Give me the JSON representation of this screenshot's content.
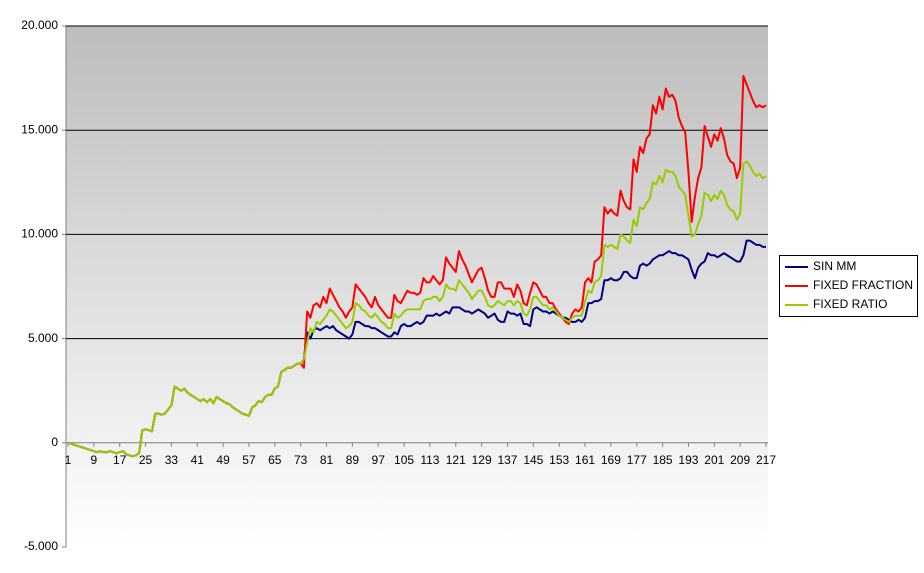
{
  "chart_data": {
    "type": "line",
    "categories": [
      1,
      null,
      null,
      null,
      null,
      null,
      null,
      null,
      9,
      null,
      null,
      null,
      null,
      null,
      null,
      null,
      17,
      null,
      null,
      null,
      null,
      null,
      null,
      null,
      25,
      null,
      null,
      null,
      null,
      null,
      null,
      null,
      33,
      null,
      null,
      null,
      null,
      null,
      null,
      null,
      41,
      null,
      null,
      null,
      null,
      null,
      null,
      null,
      49,
      null,
      null,
      null,
      null,
      null,
      null,
      null,
      57,
      null,
      null,
      null,
      null,
      null,
      null,
      null,
      65,
      null,
      null,
      null,
      null,
      null,
      null,
      null,
      73,
      null,
      null,
      null,
      null,
      null,
      null,
      null,
      81,
      null,
      null,
      null,
      null,
      null,
      null,
      null,
      89,
      null,
      null,
      null,
      null,
      null,
      null,
      null,
      97,
      null,
      null,
      null,
      null,
      null,
      null,
      null,
      105,
      null,
      null,
      null,
      null,
      null,
      null,
      null,
      113,
      null,
      null,
      null,
      null,
      null,
      null,
      null,
      121,
      null,
      null,
      null,
      null,
      null,
      null,
      null,
      129,
      null,
      null,
      null,
      null,
      null,
      null,
      null,
      137,
      null,
      null,
      null,
      null,
      null,
      null,
      null,
      145,
      null,
      null,
      null,
      null,
      null,
      null,
      null,
      153,
      null,
      null,
      null,
      null,
      null,
      null,
      null,
      161,
      null,
      null,
      null,
      null,
      null,
      null,
      null,
      169,
      null,
      null,
      null,
      null,
      null,
      null,
      null,
      177,
      null,
      null,
      null,
      null,
      null,
      null,
      null,
      185,
      null,
      null,
      null,
      null,
      null,
      null,
      null,
      193,
      null,
      null,
      null,
      null,
      null,
      null,
      null,
      201,
      null,
      null,
      null,
      null,
      null,
      null,
      null,
      209,
      null,
      null,
      null,
      null,
      null,
      null,
      null,
      217
    ],
    "series": [
      {
        "name": "SIN MM",
        "color": "#000080",
        "values": [
          0,
          -50,
          -100,
          -150,
          -200,
          -250,
          -300,
          -350,
          -400,
          -450,
          -400,
          -450,
          -450,
          -400,
          -450,
          -500,
          -450,
          -400,
          -550,
          -600,
          -650,
          -600,
          -500,
          600,
          650,
          600,
          550,
          1400,
          1400,
          1350,
          1400,
          1600,
          1800,
          2700,
          2600,
          2500,
          2600,
          2400,
          2300,
          2200,
          2100,
          2000,
          2100,
          1950,
          2100,
          1900,
          2200,
          2100,
          2000,
          1900,
          1850,
          1700,
          1600,
          1500,
          1400,
          1350,
          1300,
          1700,
          1800,
          2000,
          1950,
          2200,
          2300,
          2300,
          2600,
          2700,
          3400,
          3500,
          3600,
          3600,
          3700,
          3800,
          3800,
          4000,
          5300,
          5000,
          5400,
          5500,
          5400,
          5500,
          5600,
          5500,
          5600,
          5400,
          5300,
          5200,
          5100,
          5000,
          5200,
          5800,
          5800,
          5700,
          5600,
          5600,
          5500,
          5500,
          5400,
          5300,
          5200,
          5100,
          5100,
          5300,
          5200,
          5600,
          5700,
          5600,
          5600,
          5700,
          5800,
          5700,
          5800,
          6100,
          6100,
          6100,
          6200,
          6100,
          6200,
          6300,
          6200,
          6500,
          6500,
          6500,
          6400,
          6300,
          6300,
          6200,
          6300,
          6400,
          6300,
          6200,
          6000,
          6100,
          6200,
          5900,
          5800,
          5800,
          6300,
          6200,
          6200,
          6100,
          6200,
          5700,
          5700,
          5600,
          6400,
          6500,
          6400,
          6300,
          6300,
          6200,
          6300,
          6200,
          6100,
          6000,
          6000,
          5900,
          5800,
          5800,
          5900,
          5800,
          6000,
          6700,
          6700,
          6800,
          6800,
          6900,
          7800,
          7800,
          7900,
          7800,
          7800,
          7900,
          8200,
          8200,
          8000,
          7900,
          7900,
          8500,
          8600,
          8500,
          8600,
          8800,
          8900,
          9000,
          9000,
          9100,
          9200,
          9100,
          9100,
          9000,
          9000,
          8900,
          8800,
          8300,
          7900,
          8400,
          8600,
          8700,
          9100,
          9000,
          9000,
          8900,
          9000,
          9100,
          9000,
          8900,
          8800,
          8700,
          8700,
          9000,
          9700,
          9700,
          9600,
          9500,
          9500,
          9400,
          9400
        ]
      },
      {
        "name": "FIXED FRACTION",
        "color": "#ff0000",
        "values": [
          0,
          -50,
          -100,
          -150,
          -200,
          -250,
          -300,
          -350,
          -400,
          -450,
          -400,
          -450,
          -450,
          -400,
          -450,
          -500,
          -450,
          -400,
          -550,
          -600,
          -650,
          -600,
          -500,
          600,
          650,
          600,
          550,
          1400,
          1400,
          1350,
          1400,
          1600,
          1800,
          2700,
          2600,
          2500,
          2600,
          2400,
          2300,
          2200,
          2100,
          2000,
          2100,
          1950,
          2100,
          1900,
          2200,
          2100,
          2000,
          1900,
          1850,
          1700,
          1600,
          1500,
          1400,
          1350,
          1300,
          1700,
          1800,
          2000,
          1950,
          2200,
          2300,
          2300,
          2600,
          2700,
          3400,
          3500,
          3600,
          3600,
          3700,
          3800,
          3800,
          3600,
          6300,
          6000,
          6600,
          6700,
          6500,
          7000,
          6700,
          7400,
          7100,
          6800,
          6500,
          6300,
          6000,
          6300,
          6500,
          7600,
          7400,
          7200,
          7000,
          6700,
          6500,
          7000,
          6600,
          6400,
          6200,
          6000,
          6000,
          7100,
          6800,
          6700,
          7000,
          7300,
          7200,
          7200,
          7100,
          7200,
          7900,
          7700,
          7700,
          8000,
          7800,
          7600,
          7800,
          8900,
          8600,
          8400,
          8200,
          9200,
          8800,
          8500,
          8100,
          7700,
          8000,
          8300,
          8400,
          7900,
          7300,
          7000,
          7000,
          7700,
          7700,
          7400,
          7400,
          7400,
          7000,
          7600,
          7300,
          6700,
          6600,
          7200,
          7700,
          7600,
          7300,
          7000,
          7000,
          6700,
          6700,
          6400,
          6200,
          6000,
          5800,
          5700,
          6200,
          6400,
          6300,
          6500,
          7700,
          7900,
          7700,
          8700,
          8800,
          9000,
          11300,
          11000,
          11200,
          11000,
          10900,
          12100,
          11600,
          11300,
          11200,
          13600,
          13000,
          14200,
          13900,
          14600,
          14800,
          16200,
          15800,
          16600,
          16000,
          17000,
          16600,
          16700,
          16400,
          15600,
          15200,
          14900,
          13000,
          10600,
          11800,
          12700,
          13200,
          15200,
          14700,
          14200,
          14800,
          14500,
          15100,
          14600,
          13800,
          13500,
          13400,
          12700,
          13200,
          17600,
          17200,
          16800,
          16400,
          16100,
          16200,
          16100,
          16200
        ]
      },
      {
        "name": "FIXED RATIO",
        "color": "#99cc00",
        "values": [
          0,
          -50,
          -100,
          -150,
          -200,
          -250,
          -300,
          -350,
          -400,
          -450,
          -400,
          -450,
          -450,
          -400,
          -450,
          -500,
          -450,
          -400,
          -550,
          -600,
          -650,
          -600,
          -500,
          600,
          650,
          600,
          550,
          1400,
          1400,
          1350,
          1400,
          1600,
          1800,
          2700,
          2600,
          2500,
          2600,
          2400,
          2300,
          2200,
          2100,
          2000,
          2100,
          1950,
          2100,
          1900,
          2200,
          2100,
          2000,
          1900,
          1850,
          1700,
          1600,
          1500,
          1400,
          1350,
          1300,
          1700,
          1800,
          2000,
          1950,
          2200,
          2300,
          2300,
          2600,
          2700,
          3400,
          3500,
          3600,
          3600,
          3700,
          3800,
          3800,
          4000,
          4800,
          5500,
          5300,
          5800,
          5700,
          5900,
          6100,
          6400,
          6300,
          6100,
          5900,
          5700,
          5500,
          5600,
          5800,
          6700,
          6600,
          6400,
          6300,
          6100,
          6000,
          6200,
          6000,
          5800,
          5700,
          5500,
          5500,
          6200,
          6000,
          6100,
          6300,
          6400,
          6400,
          6400,
          6400,
          6400,
          6800,
          6900,
          6900,
          7000,
          7000,
          6800,
          7000,
          7600,
          7400,
          7400,
          7300,
          7800,
          7600,
          7400,
          7200,
          6900,
          7100,
          7300,
          7300,
          7000,
          6600,
          6500,
          6600,
          6800,
          6700,
          6600,
          6800,
          6800,
          6600,
          6800,
          6700,
          6200,
          6100,
          6400,
          7000,
          7000,
          6800,
          6600,
          6600,
          6400,
          6500,
          6300,
          6100,
          6000,
          5900,
          5800,
          6000,
          6100,
          6100,
          6100,
          6800,
          7300,
          7200,
          7700,
          7800,
          8000,
          9500,
          9400,
          9500,
          9400,
          9300,
          10000,
          9900,
          9700,
          9600,
          10700,
          10400,
          11300,
          11200,
          11500,
          11700,
          12500,
          12400,
          12800,
          12500,
          13100,
          13000,
          13000,
          12800,
          12300,
          12100,
          11900,
          10900,
          9900,
          10000,
          10500,
          10900,
          12000,
          11900,
          11600,
          11900,
          11700,
          12100,
          11900,
          11400,
          11200,
          11100,
          10700,
          11000,
          13400,
          13500,
          13300,
          13000,
          12800,
          12900,
          12700,
          12800
        ]
      }
    ],
    "ylim": [
      -5000,
      20000
    ],
    "yticks": [
      {
        "value": -5000,
        "label": "-5.000"
      },
      0,
      {
        "value": 5000,
        "label": "5.000"
      },
      {
        "value": 10000,
        "label": "10.000"
      },
      {
        "value": 15000,
        "label": "15.000"
      },
      {
        "value": 20000,
        "label": "20.000"
      }
    ],
    "grid": true,
    "legend": "right"
  }
}
